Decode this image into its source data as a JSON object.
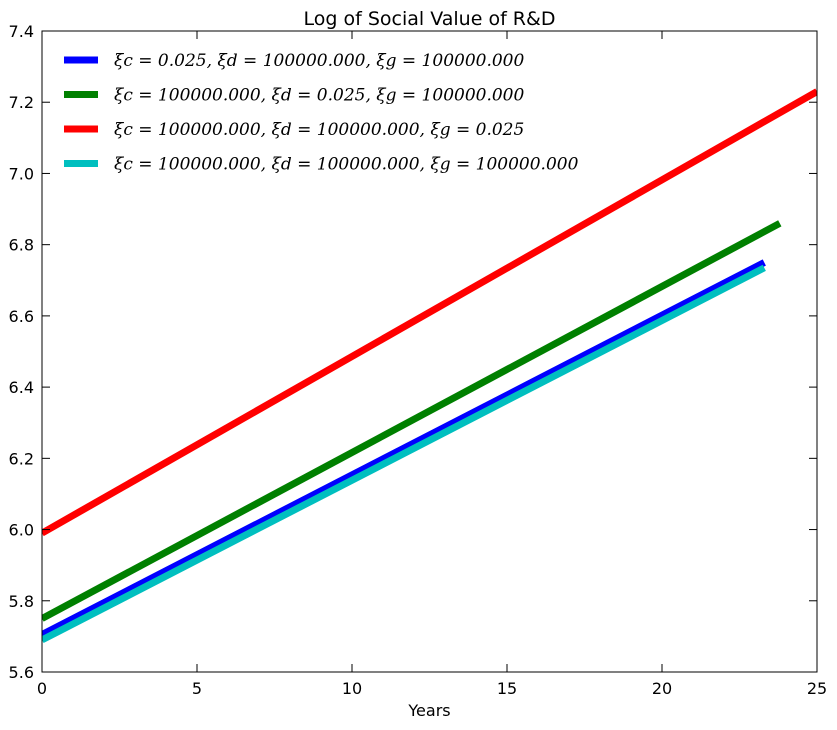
{
  "chart_data": {
    "type": "line",
    "title": "Log of Social Value of R&D",
    "xlabel": "Years",
    "ylabel": "",
    "xlim": [
      0,
      25
    ],
    "ylim": [
      5.6,
      7.4
    ],
    "xticks": [
      "0",
      "5",
      "10",
      "15",
      "20",
      "25"
    ],
    "yticks": [
      "5.6",
      "5.8",
      "6.0",
      "6.2",
      "6.4",
      "6.6",
      "6.8",
      "7.0",
      "7.2",
      "7.4"
    ],
    "grid": false,
    "legend_position": "top-left",
    "series": [
      {
        "name": "ξc = 0.025, ξd = 100000.000, ξg = 100000.000",
        "color": "#0000ff",
        "x": [
          0,
          23.3
        ],
        "y": [
          5.705,
          6.75
        ]
      },
      {
        "name": "ξc = 100000.000, ξd = 0.025, ξg = 100000.000",
        "color": "#008000",
        "x": [
          0,
          23.8
        ],
        "y": [
          5.75,
          6.86
        ]
      },
      {
        "name": "ξc = 100000.000, ξd = 100000.000, ξg = 0.025",
        "color": "#ff0000",
        "x": [
          0,
          25
        ],
        "y": [
          5.99,
          7.23
        ]
      },
      {
        "name": "ξc = 100000.000, ξd = 100000.000, ξg = 100000.000",
        "color": "#00bfbf",
        "x": [
          0,
          23.3
        ],
        "y": [
          5.69,
          6.735
        ]
      }
    ]
  }
}
